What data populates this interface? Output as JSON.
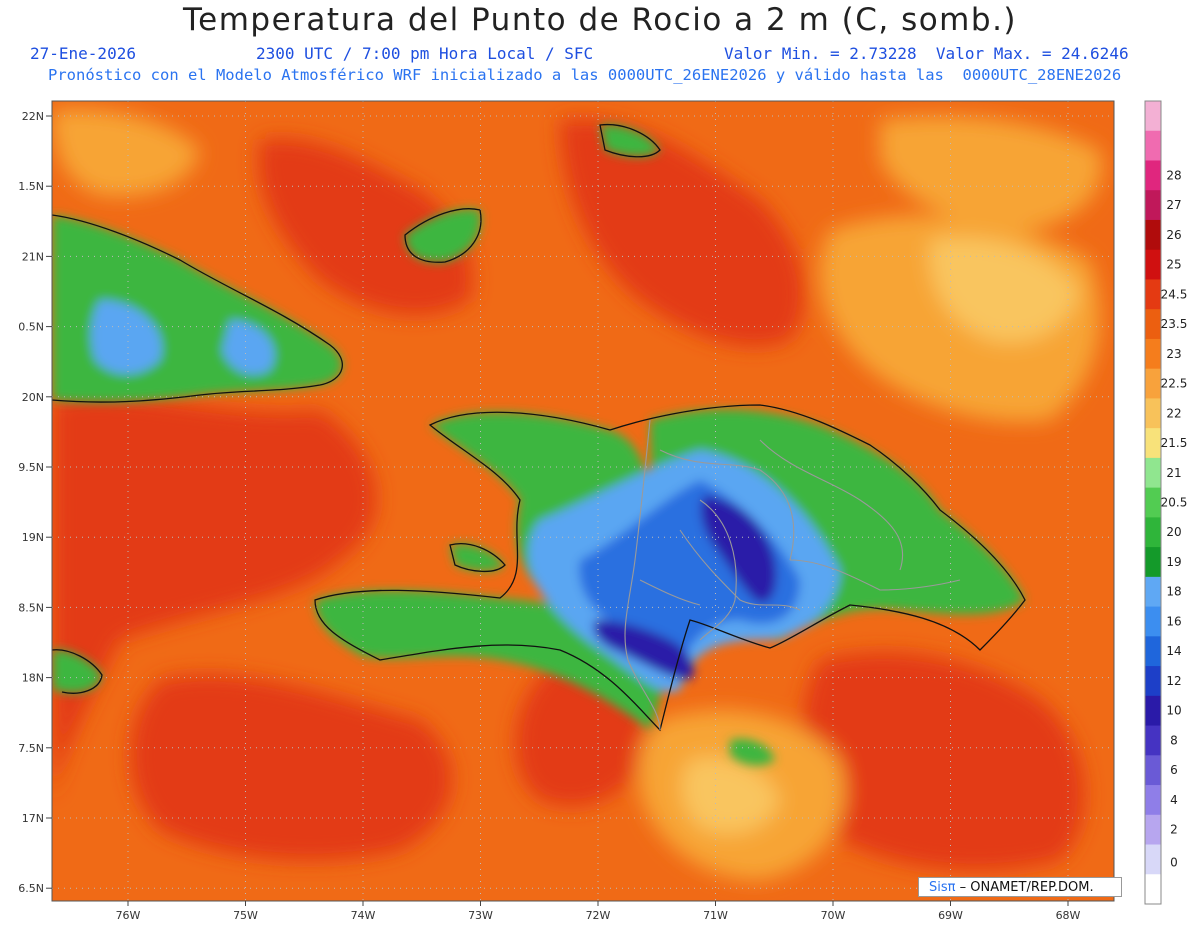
{
  "header": {
    "title": "Temperatura del Punto de Rocio a 2 m (C, somb.)",
    "date": "27-Ene-2026",
    "time": "2300 UTC / 7:00 pm Hora Local / SFC",
    "minmax": "Valor Min. = 2.73228  Valor Max. = 24.6246",
    "forecast": "Pronóstico con el Modelo Atmosférico WRF inicializado a las 0000UTC_26ENE2026 y válido hasta las  0000UTC_28ENE2026"
  },
  "axes": {
    "lat_labels": [
      "22N",
      "1.5N",
      "21N",
      "0.5N",
      "20N",
      "9.5N",
      "19N",
      "8.5N",
      "18N",
      "7.5N",
      "17N",
      "6.5N"
    ],
    "lon_labels": [
      "76W",
      "75W",
      "74W",
      "73W",
      "72W",
      "71W",
      "70W",
      "69W",
      "68W"
    ]
  },
  "colorbar": {
    "levels": [
      "0",
      "2",
      "4",
      "6",
      "8",
      "10",
      "12",
      "14",
      "16",
      "18",
      "19",
      "20",
      "20.5",
      "21",
      "21.5",
      "22",
      "22.5",
      "23",
      "23.5",
      "24.5",
      "25",
      "26",
      "27",
      "28"
    ],
    "colors": [
      "#ffffff",
      "#d8d8f8",
      "#b7a6ef",
      "#8f7ee8",
      "#6a5ad6",
      "#4533c2",
      "#2a1aa8",
      "#1d3fc8",
      "#1f66dc",
      "#3c8ef0",
      "#5fa8f4",
      "#149a2a",
      "#2fb53a",
      "#52cc52",
      "#90e68f",
      "#f8e27a",
      "#f8c25a",
      "#f8a23c",
      "#f57d1c",
      "#ec5f10",
      "#e43a12",
      "#d01010",
      "#b00c0c",
      "#c0185a",
      "#e0267e",
      "#f06bb0",
      "#f3b0d4"
    ],
    "lowest_color": "#ffffff"
  },
  "palette": {
    "sea_base": "#f06a16",
    "sea_hot": "#e33a12",
    "sea_warm": "#f7a435",
    "sea_cool": "#f9c55e",
    "land_green": "#3cb640",
    "land_dark_green": "#1a9b2a",
    "land_lightblue": "#5aa6f2",
    "land_blue": "#2a6fe0",
    "land_darkblue": "#2a1fa8",
    "coast": "#111111",
    "border": "#9a9a9a",
    "grid": "#bbbbbb"
  },
  "credit": {
    "brand": "Sisπ",
    "text": "– ONAMET/REP.DOM."
  }
}
